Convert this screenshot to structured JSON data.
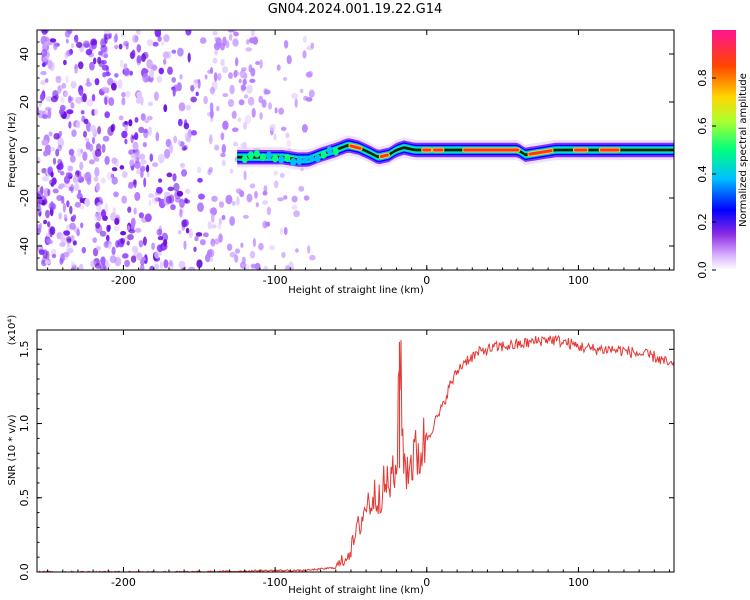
{
  "title": "GN04.2024.001.19.22.G14",
  "chart_data": [
    {
      "type": "heatmap",
      "description_of_content": "spectrogram: normalized spectral amplitude vs height and frequency",
      "xlabel": "Height of straight line (km)",
      "ylabel": "Frequency (Hz)",
      "xlim": [
        -257,
        163
      ],
      "ylim": [
        -50,
        50
      ],
      "x_ticks": [
        -200,
        -100,
        0,
        100
      ],
      "y_ticks": [
        -40,
        -20,
        0,
        20,
        40
      ],
      "x_tick_labels": [
        "-200",
        "-100",
        "0",
        "100"
      ],
      "y_tick_labels": [
        "-40",
        "-20",
        "0",
        "20",
        "40"
      ],
      "noise_region_x": [
        -257,
        -75
      ],
      "ridge": {
        "x": [
          -125,
          -110,
          -95,
          -85,
          -78,
          -70,
          -60,
          -52,
          -45,
          -38,
          -32,
          -25,
          -20,
          -15,
          -8,
          0,
          8,
          20,
          40,
          60,
          65,
          75,
          85,
          95,
          105,
          120,
          140,
          163
        ],
        "freq": [
          -3,
          -3,
          -3,
          -4,
          -4,
          -2,
          0,
          2,
          1,
          -1,
          -3,
          -2,
          0,
          1,
          0,
          0,
          0,
          0,
          0,
          0,
          -2,
          -1,
          0,
          0,
          0,
          0,
          0,
          0
        ]
      },
      "colorbar": {
        "label": "Normalized spectral amplitude",
        "range": [
          0,
          1
        ],
        "ticks": [
          0.0,
          0.2,
          0.4,
          0.6,
          0.8
        ],
        "tick_labels": [
          "0.0",
          "0.2",
          "0.4",
          "0.6",
          "0.8"
        ],
        "colors": [
          "#ffffff",
          "#d9b3ff",
          "#8a2be2",
          "#0000ff",
          "#00bfff",
          "#00ff7f",
          "#adff2f",
          "#ffd700",
          "#ff4500",
          "#ff1493"
        ]
      },
      "grid": false
    },
    {
      "type": "line",
      "xlabel": "Height of straight line (km)",
      "ylabel": "SNR (10 * v/v)",
      "y_multiplier_label": "(x10⁴)",
      "xlim": [
        -257,
        163
      ],
      "ylim": [
        0,
        1.63
      ],
      "x_ticks": [
        -200,
        -100,
        0,
        100
      ],
      "y_ticks": [
        0.0,
        0.5,
        1.0,
        1.5
      ],
      "x_tick_labels": [
        "-200",
        "-100",
        "0",
        "100"
      ],
      "y_tick_labels": [
        "0.0",
        "0.5",
        "1.0",
        "1.5"
      ],
      "series": [
        {
          "color": "#e53935",
          "x": [
            -257,
            -200,
            -150,
            -100,
            -80,
            -60,
            -55,
            -50,
            -45,
            -40,
            -35,
            -30,
            -25,
            -20,
            -18,
            -15,
            -10,
            -5,
            0,
            5,
            10,
            15,
            20,
            25,
            30,
            35,
            40,
            50,
            60,
            70,
            80,
            90,
            100,
            110,
            120,
            130,
            140,
            150,
            160,
            163
          ],
          "y": [
            0.0,
            0.0,
            0.0,
            0.01,
            0.01,
            0.03,
            0.08,
            0.15,
            0.3,
            0.45,
            0.5,
            0.55,
            0.6,
            0.65,
            1.55,
            0.7,
            0.75,
            0.8,
            0.9,
            1.0,
            1.1,
            1.25,
            1.35,
            1.42,
            1.45,
            1.48,
            1.5,
            1.52,
            1.53,
            1.55,
            1.57,
            1.55,
            1.52,
            1.5,
            1.5,
            1.49,
            1.47,
            1.45,
            1.4,
            1.38
          ]
        }
      ],
      "grid": false
    }
  ]
}
